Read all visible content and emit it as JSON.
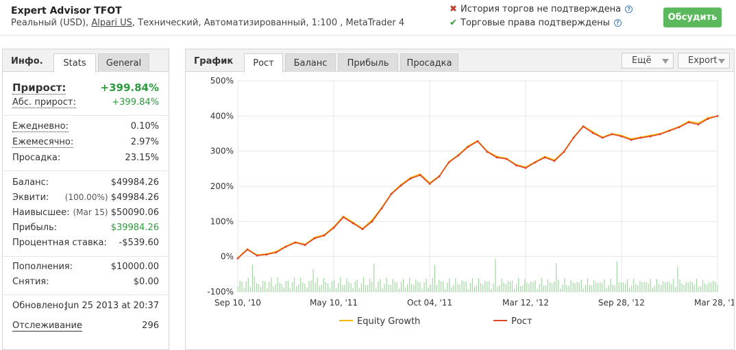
{
  "header": {
    "title": "Expert Advisor TFOT",
    "subtitle_pre": "Реальный (USD), ",
    "broker": "Alpari US",
    "subtitle_post": ", Технический, Автоматизированный, 1:100 , MetaTrader 4",
    "status_history": "История торгов не подтверждена",
    "status_rights": "Торговые права подтверждены",
    "discuss_button": "Обсудить",
    "colors": {
      "ok": "#2e9a3f",
      "bad": "#c0392b",
      "button": "#5cb85c"
    }
  },
  "left": {
    "tab_label": "Инфо.",
    "tabs": [
      "Stats",
      "General"
    ],
    "growth_label": "Прирост:",
    "growth_value": "+399.84%",
    "abs_label": "Абс. прирост:",
    "abs_value": "+399.84%",
    "daily_label": "Ежедневно:",
    "daily_value": "0.10%",
    "monthly_label": "Ежемесячно:",
    "monthly_value": "2.97%",
    "drawdown_label": "Просадка:",
    "drawdown_value": "23.15%",
    "balance_label": "Баланс:",
    "balance_value": "$49984.26",
    "equity_label": "Эквити:",
    "equity_pct": "(100.00%)",
    "equity_value": "$49984.26",
    "highest_label": "Наивысшее:",
    "highest_date": "(Mar 15)",
    "highest_value": "$50090.06",
    "profit_label": "Прибыль:",
    "profit_value": "$39984.26",
    "interest_label": "Процентная ставка:",
    "interest_value": "-$539.60",
    "deposits_label": "Пополнения:",
    "deposits_value": "$10000.00",
    "withdrawals_label": "Снятия:",
    "withdrawals_value": "$0.00",
    "updated_label": "Обновлено:",
    "updated_value": "Jun 25 2013 at 20:37",
    "tracking_label": "Отслеживание",
    "tracking_value": "296"
  },
  "right": {
    "tab_label": "График",
    "tabs": [
      "Рост",
      "Баланс",
      "Прибыль",
      "Просадка"
    ],
    "more_dropdown": "Ещё",
    "export_dropdown": "Export"
  },
  "chart_data": {
    "type": "line",
    "title": "",
    "xlabel": "",
    "ylabel": "",
    "ylim": [
      -100,
      500
    ],
    "yticks": [
      "500%",
      "400%",
      "300%",
      "200%",
      "100%",
      "0%",
      "-100%"
    ],
    "yticks_values": [
      500,
      400,
      300,
      200,
      100,
      0,
      -100
    ],
    "xticks": [
      "Sep 10, '10",
      "May 10, '11",
      "Oct 04, '11",
      "Mar 12, '12",
      "Sep 28, '12",
      "Mar 28, '13"
    ],
    "xticks_pos": [
      0,
      0.2,
      0.4,
      0.6,
      0.8,
      1.0
    ],
    "grid": true,
    "legend_position": "bottom",
    "series": [
      {
        "name": "Equity Growth",
        "color": "#f5b800",
        "x": [
          0,
          0.02,
          0.04,
          0.06,
          0.08,
          0.1,
          0.12,
          0.14,
          0.16,
          0.18,
          0.2,
          0.22,
          0.24,
          0.26,
          0.28,
          0.3,
          0.32,
          0.34,
          0.36,
          0.38,
          0.4,
          0.42,
          0.44,
          0.46,
          0.48,
          0.5,
          0.52,
          0.54,
          0.56,
          0.58,
          0.6,
          0.62,
          0.64,
          0.66,
          0.68,
          0.7,
          0.72,
          0.74,
          0.76,
          0.78,
          0.8,
          0.82,
          0.84,
          0.86,
          0.88,
          0.9,
          0.92,
          0.94,
          0.96,
          0.98,
          1.0
        ],
        "values": [
          -3,
          22,
          5,
          8,
          15,
          30,
          42,
          35,
          55,
          62,
          85,
          115,
          98,
          80,
          105,
          140,
          180,
          205,
          225,
          235,
          210,
          230,
          270,
          290,
          315,
          330,
          300,
          285,
          280,
          262,
          255,
          270,
          285,
          275,
          300,
          340,
          372,
          355,
          340,
          350,
          345,
          335,
          340,
          345,
          350,
          360,
          370,
          385,
          380,
          395,
          400
        ]
      },
      {
        "name": "Рост",
        "color": "#e0442a",
        "x": [
          0,
          0.02,
          0.04,
          0.06,
          0.08,
          0.1,
          0.12,
          0.14,
          0.16,
          0.18,
          0.2,
          0.22,
          0.24,
          0.26,
          0.28,
          0.3,
          0.32,
          0.34,
          0.36,
          0.38,
          0.4,
          0.42,
          0.44,
          0.46,
          0.48,
          0.5,
          0.52,
          0.54,
          0.56,
          0.58,
          0.6,
          0.62,
          0.64,
          0.66,
          0.68,
          0.7,
          0.72,
          0.74,
          0.76,
          0.78,
          0.8,
          0.82,
          0.84,
          0.86,
          0.88,
          0.9,
          0.92,
          0.94,
          0.96,
          0.98,
          1.0
        ],
        "values": [
          -5,
          20,
          3,
          6,
          12,
          28,
          40,
          33,
          52,
          60,
          82,
          112,
          95,
          78,
          100,
          137,
          178,
          202,
          222,
          232,
          207,
          228,
          268,
          288,
          312,
          328,
          298,
          282,
          278,
          260,
          252,
          268,
          282,
          272,
          298,
          338,
          370,
          352,
          338,
          348,
          342,
          332,
          338,
          342,
          348,
          358,
          368,
          382,
          376,
          392,
          399.84
        ]
      }
    ]
  }
}
